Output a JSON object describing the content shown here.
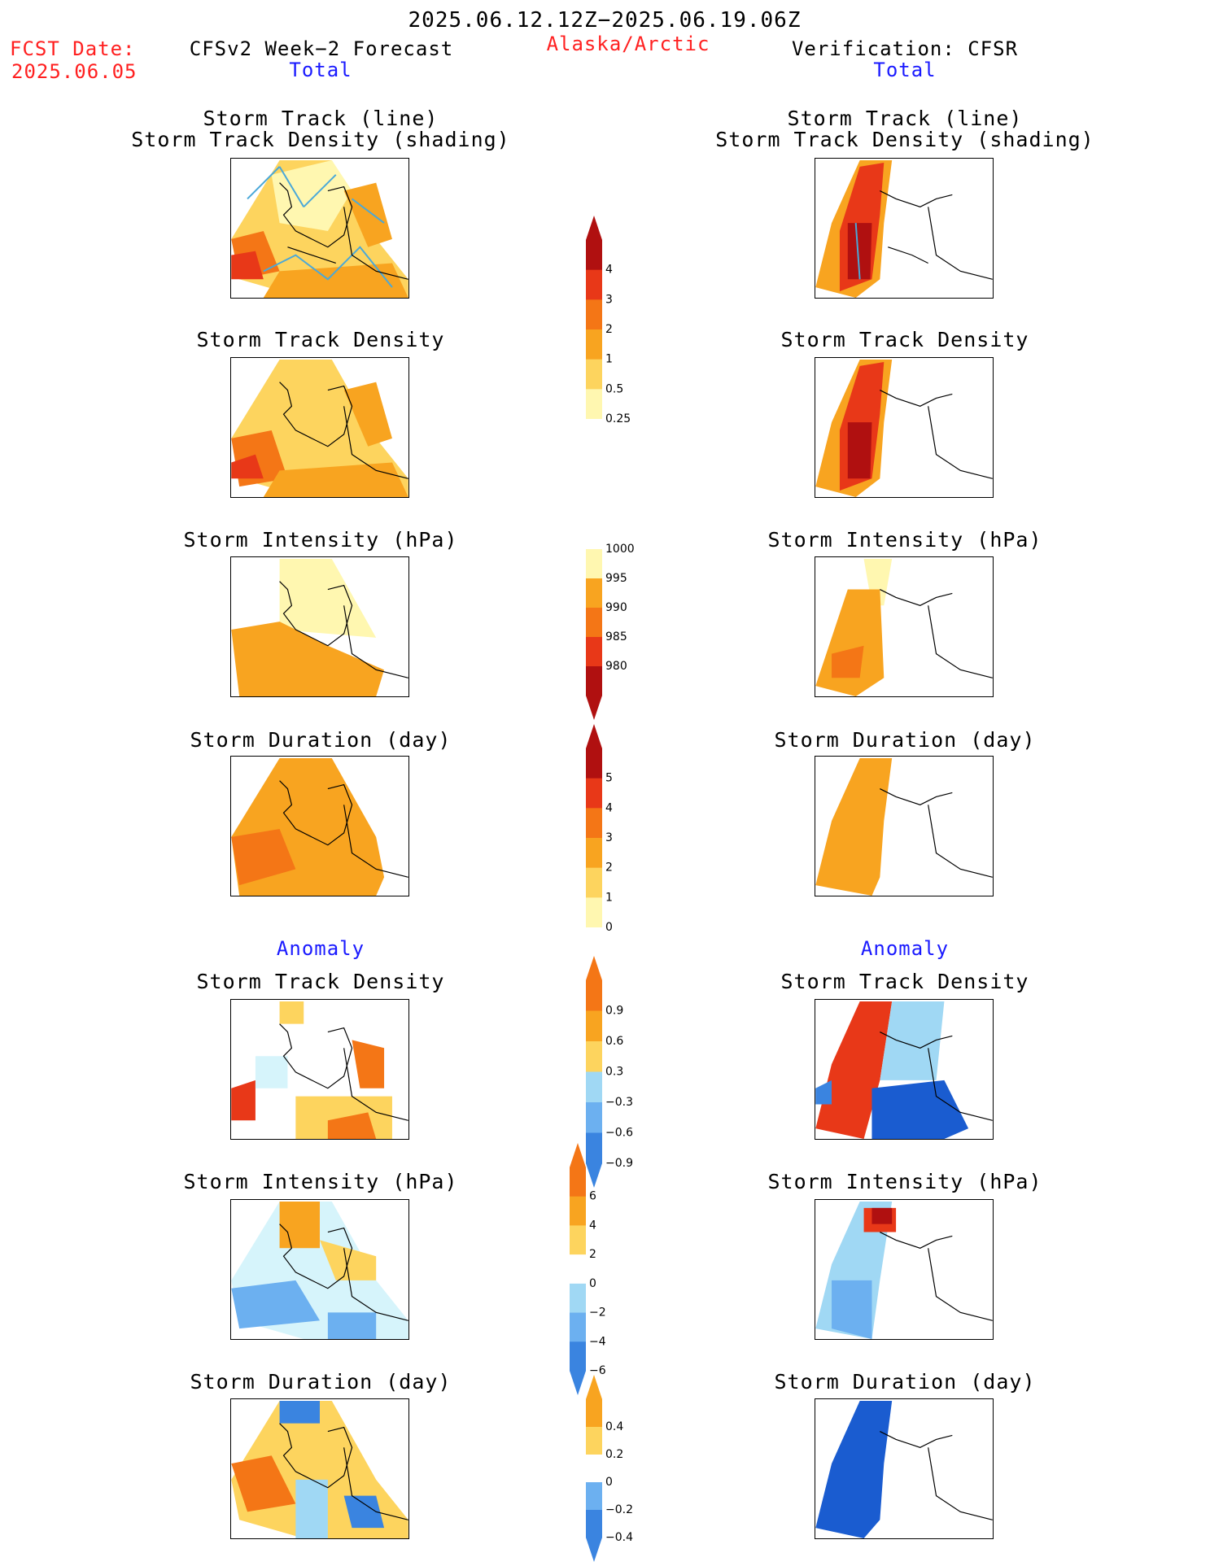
{
  "header": {
    "date_range": "2025.06.12.12Z−2025.06.19.06Z",
    "fcst_label": "FCST Date:",
    "fcst_date": "2025.06.05",
    "forecast_title": "CFSv2 Week−2 Forecast",
    "region": "Alaska/Arctic",
    "verification_title": "Verification: CFSR"
  },
  "sections": {
    "total_left": "Total",
    "total_right": "Total",
    "anomaly_left": "Anomaly",
    "anomaly_right": "Anomaly"
  },
  "panel_titles": {
    "track_line": "Storm Track (line)",
    "track_shading": "Storm Track Density (shading)",
    "density": "Storm Track Density",
    "intensity": "Storm Intensity (hPa)",
    "duration": "Storm Duration (day)"
  },
  "colorbars": {
    "density_total": [
      "4",
      "3",
      "2",
      "1",
      "0.5",
      "0.25"
    ],
    "intensity_total": [
      "1000",
      "995",
      "990",
      "985",
      "980"
    ],
    "duration_total": [
      "5",
      "4",
      "3",
      "2",
      "1",
      "0"
    ],
    "density_anom": [
      "0.9",
      "0.6",
      "0.3",
      "−0.3",
      "−0.6",
      "−0.9"
    ],
    "intensity_anom": [
      "6",
      "4",
      "2",
      "0",
      "−2",
      "−4",
      "−6"
    ],
    "duration_anom": [
      "0.4",
      "0.2",
      "0",
      "−0.2",
      "−0.4"
    ]
  },
  "colors": {
    "warm": [
      "#fff7b0",
      "#fdd45e",
      "#f8a420",
      "#f47616",
      "#e83818",
      "#b01010"
    ],
    "cool": [
      "#d6f4fb",
      "#a0d8f4",
      "#6cb0f0",
      "#3a84e0",
      "#1a5cd0"
    ],
    "header_red": "#ff2020",
    "header_blue": "#1a1aff"
  }
}
